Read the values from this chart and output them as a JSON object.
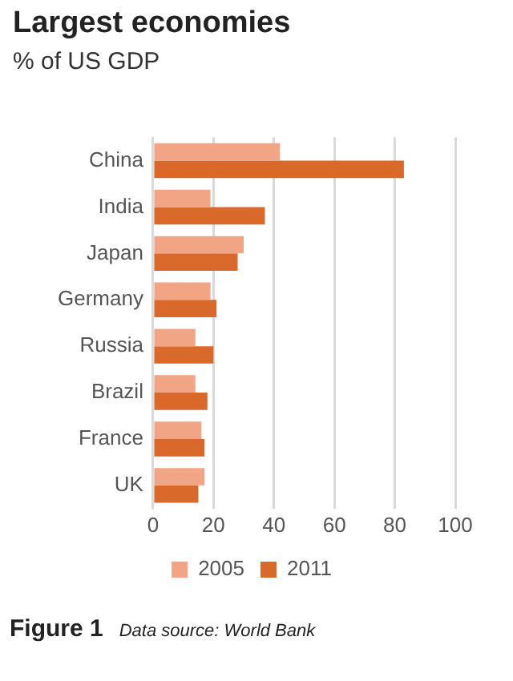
{
  "chart_data": {
    "type": "bar",
    "orientation": "horizontal",
    "title": "Largest economies",
    "subtitle": "% of US GDP",
    "categories": [
      "China",
      "India",
      "Japan",
      "Germany",
      "Russia",
      "Brazil",
      "France",
      "UK"
    ],
    "series": [
      {
        "name": "2005",
        "color": "#f2a584",
        "values": [
          42,
          19,
          30,
          19,
          14,
          14,
          16,
          17
        ]
      },
      {
        "name": "2011",
        "color": "#d8692b",
        "values": [
          83,
          37,
          28,
          21,
          20,
          18,
          17,
          15
        ]
      }
    ],
    "xlim": [
      0,
      100
    ],
    "xticks": [
      0,
      20,
      40,
      60,
      80,
      100
    ],
    "grid": "x",
    "legend": "bottom",
    "annotations": [
      "Figure 1",
      "Data source: World Bank"
    ]
  }
}
